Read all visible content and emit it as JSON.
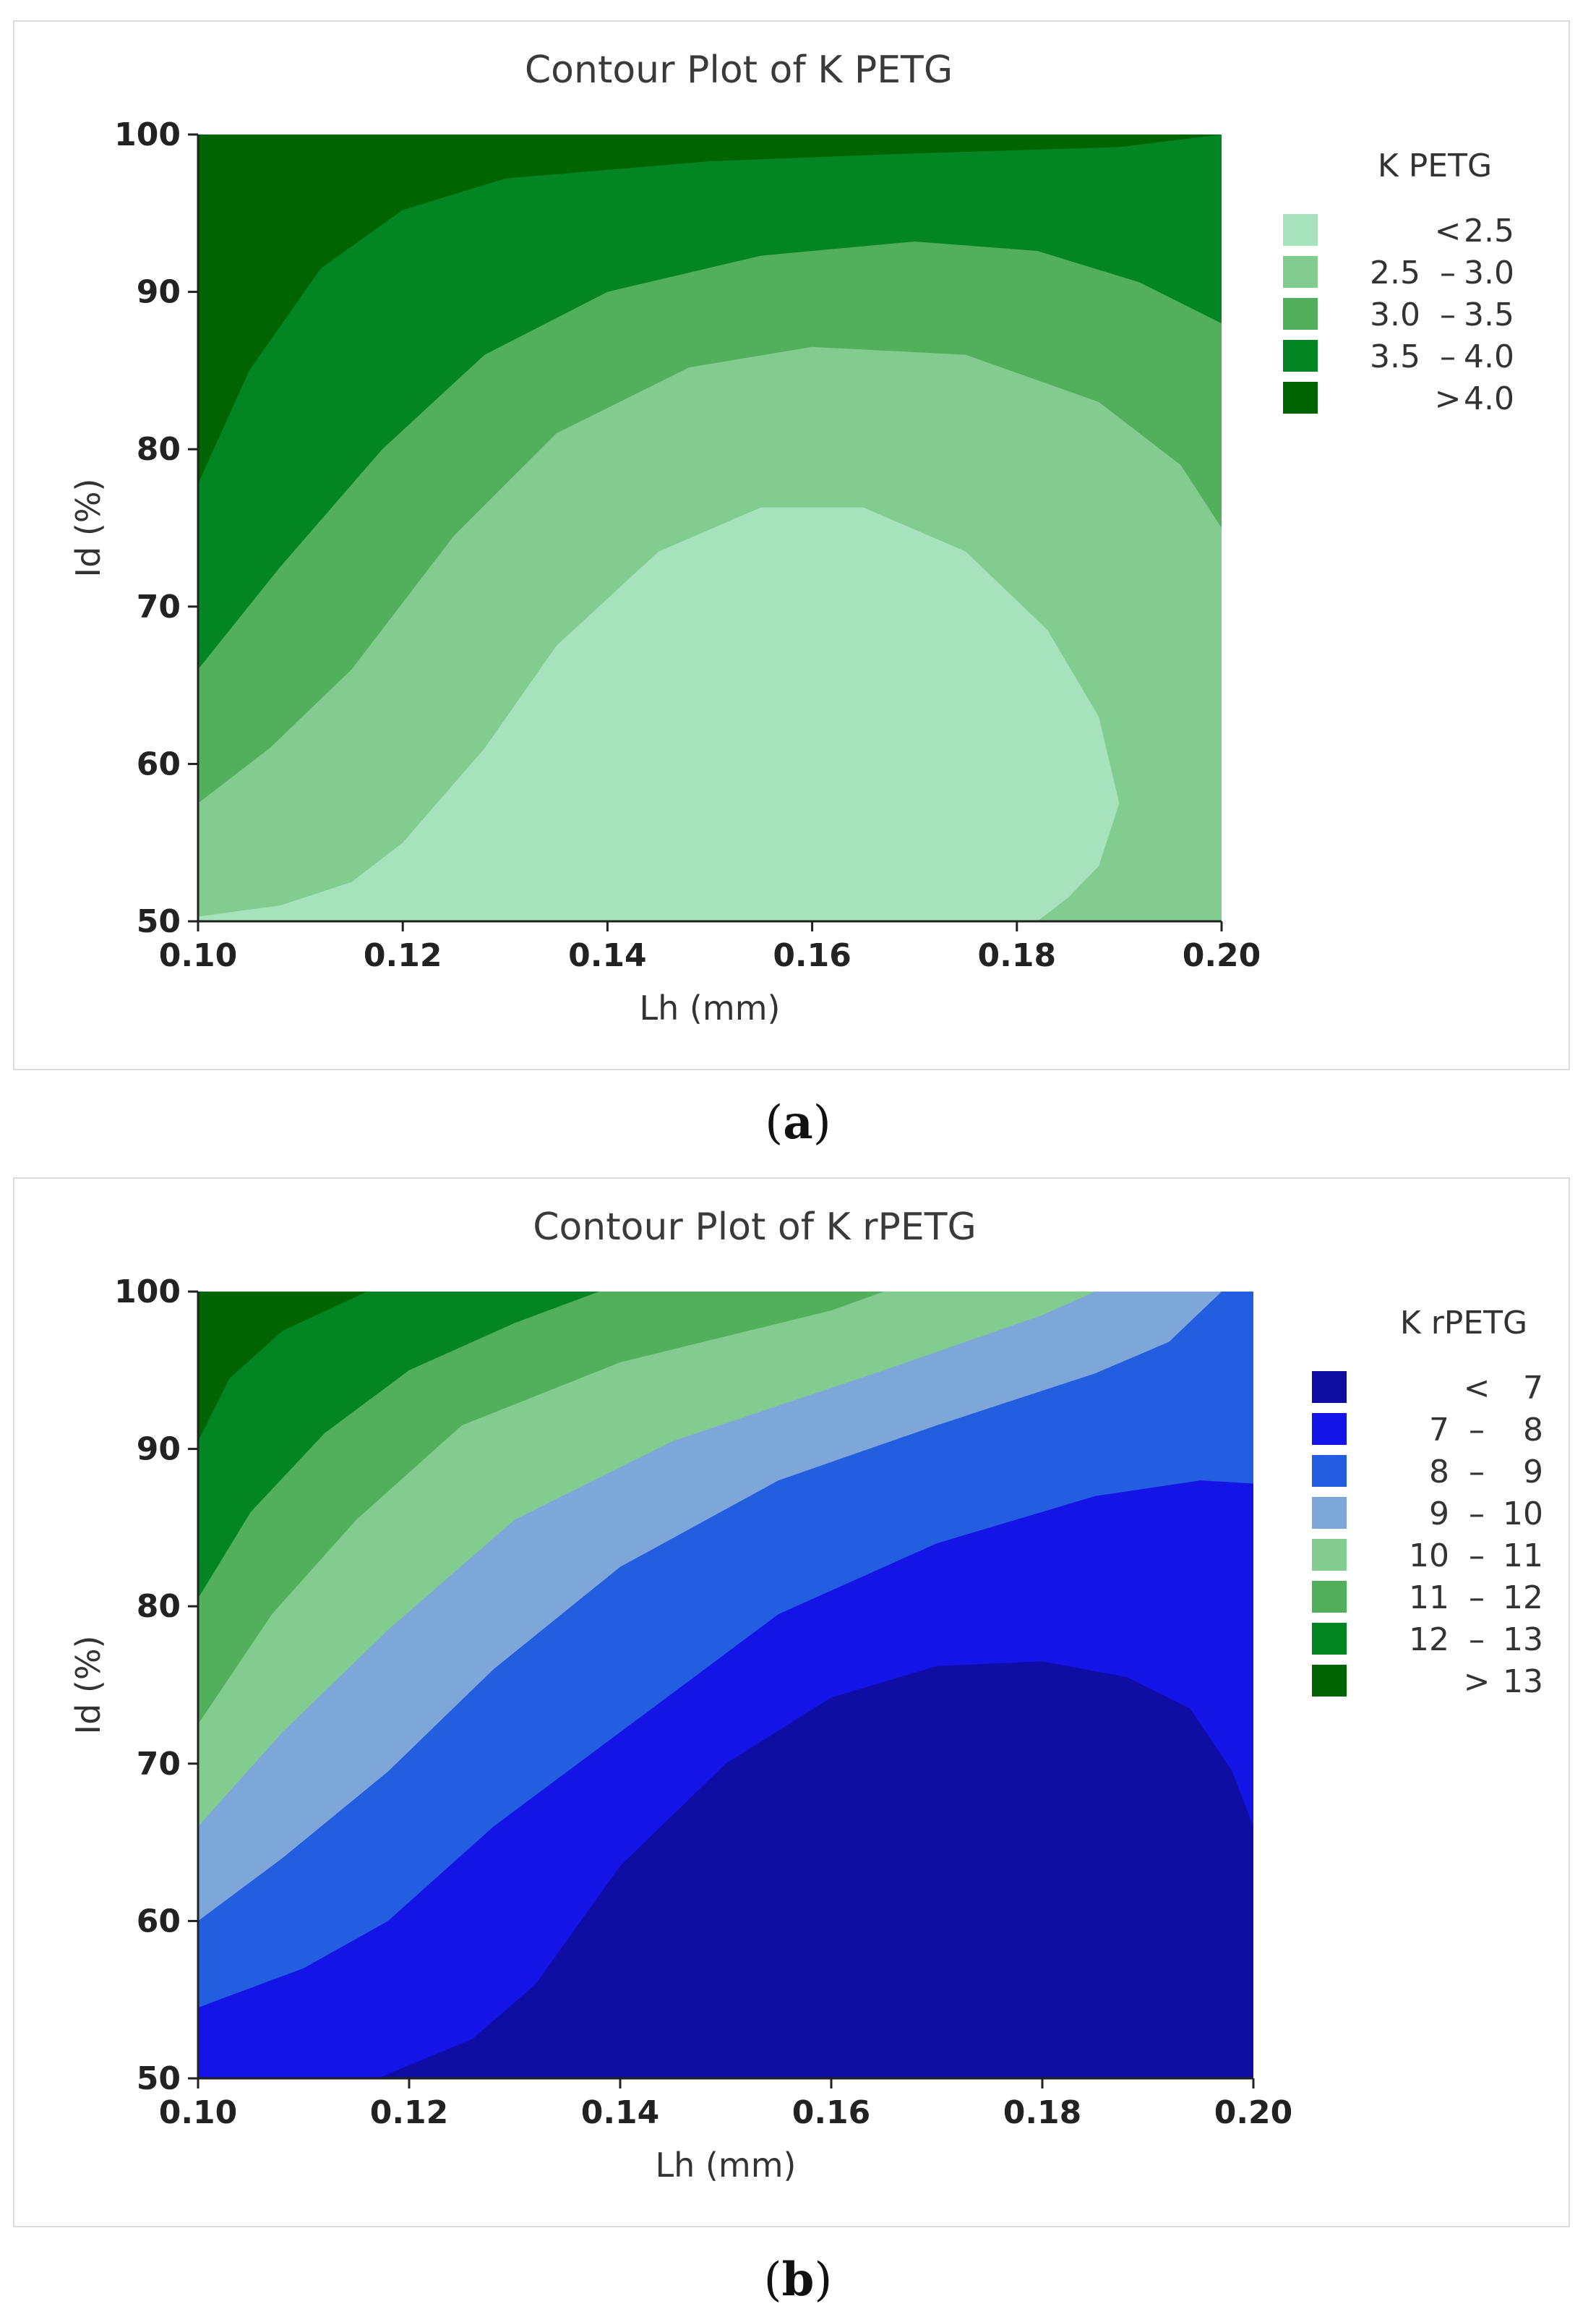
{
  "chart_data": [
    {
      "type": "contour",
      "panel": "a",
      "title": "Contour Plot of K PETG",
      "xlabel": "Lh (mm)",
      "ylabel": "Id (%)",
      "xlim": [
        0.1,
        0.2
      ],
      "ylim": [
        50,
        100
      ],
      "xticks": [
        "0.10",
        "0.12",
        "0.14",
        "0.16",
        "0.18",
        "0.20"
      ],
      "yticks": [
        "50",
        "60",
        "70",
        "80",
        "90",
        "100"
      ],
      "legend_title": "K PETG",
      "legend_position": "right",
      "levels": [
        {
          "lo": "",
          "sym": "<",
          "hi": "2.5",
          "color": "#a6e3bc"
        },
        {
          "lo": "2.5",
          "sym": "–",
          "hi": "3.0",
          "color": "#83cc8f"
        },
        {
          "lo": "3.0",
          "sym": "–",
          "hi": "3.5",
          "color": "#52b05c"
        },
        {
          "lo": "3.5",
          "sym": "–",
          "hi": "4.0",
          "color": "#048524"
        },
        {
          "lo": "",
          "sym": ">",
          "hi": "4.0",
          "color": "#006400"
        }
      ],
      "boundaries": [
        {
          "value": 4.0,
          "points": [
            [
              0.1,
              77.8
            ],
            [
              0.105,
              85
            ],
            [
              0.112,
              91.5
            ],
            [
              0.12,
              95.2
            ],
            [
              0.13,
              97.2
            ],
            [
              0.15,
              98.3
            ],
            [
              0.17,
              98.8
            ],
            [
              0.19,
              99.2
            ],
            [
              0.2,
              100
            ]
          ]
        },
        {
          "value": 3.5,
          "points": [
            [
              0.1,
              66
            ],
            [
              0.108,
              72.5
            ],
            [
              0.118,
              80
            ],
            [
              0.128,
              86
            ],
            [
              0.14,
              90
            ],
            [
              0.155,
              92.3
            ],
            [
              0.17,
              93.2
            ],
            [
              0.182,
              92.6
            ],
            [
              0.192,
              90.6
            ],
            [
              0.2,
              88
            ]
          ]
        },
        {
          "value": 3.0,
          "points": [
            [
              0.1,
              57.5
            ],
            [
              0.107,
              61
            ],
            [
              0.115,
              66
            ],
            [
              0.125,
              74.5
            ],
            [
              0.135,
              81
            ],
            [
              0.148,
              85.2
            ],
            [
              0.16,
              86.5
            ],
            [
              0.175,
              86
            ],
            [
              0.188,
              83
            ],
            [
              0.196,
              79
            ],
            [
              0.2,
              75
            ]
          ]
        },
        {
          "value": 2.5,
          "points": [
            [
              0.1,
              50.3
            ],
            [
              0.108,
              51
            ],
            [
              0.115,
              52.5
            ],
            [
              0.12,
              55
            ],
            [
              0.128,
              61
            ],
            [
              0.135,
              67.5
            ],
            [
              0.145,
              73.5
            ],
            [
              0.155,
              76.3
            ],
            [
              0.165,
              76.3
            ],
            [
              0.175,
              73.5
            ],
            [
              0.183,
              68.5
            ],
            [
              0.188,
              63
            ],
            [
              0.19,
              57.5
            ],
            [
              0.188,
              53.5
            ],
            [
              0.185,
              51.5
            ],
            [
              0.182,
              50
            ]
          ]
        }
      ]
    },
    {
      "type": "contour",
      "panel": "b",
      "title": "Contour Plot of K rPETG",
      "xlabel": "Lh (mm)",
      "ylabel": "Id (%)",
      "xlim": [
        0.1,
        0.2
      ],
      "ylim": [
        50,
        100
      ],
      "xticks": [
        "0.10",
        "0.12",
        "0.14",
        "0.16",
        "0.18",
        "0.20"
      ],
      "yticks": [
        "50",
        "60",
        "70",
        "80",
        "90",
        "100"
      ],
      "legend_title": "K rPETG",
      "legend_position": "right",
      "levels": [
        {
          "lo": "",
          "sym": "<",
          "hi": "7",
          "color": "#0f0ea3"
        },
        {
          "lo": "7",
          "sym": "–",
          "hi": "8",
          "color": "#1414e6"
        },
        {
          "lo": "8",
          "sym": "–",
          "hi": "9",
          "color": "#235de0"
        },
        {
          "lo": "9",
          "sym": "–",
          "hi": "10",
          "color": "#7ea7d9"
        },
        {
          "lo": "10",
          "sym": "–",
          "hi": "11",
          "color": "#83cc8f"
        },
        {
          "lo": "11",
          "sym": "–",
          "hi": "12",
          "color": "#52b05c"
        },
        {
          "lo": "12",
          "sym": "–",
          "hi": "13",
          "color": "#048524"
        },
        {
          "lo": "",
          "sym": ">",
          "hi": "13",
          "color": "#006400"
        }
      ],
      "boundaries": [
        {
          "value": 13,
          "points": [
            [
              0.1,
              90.5
            ],
            [
              0.103,
              94.5
            ],
            [
              0.108,
              97.5
            ],
            [
              0.116,
              100
            ]
          ]
        },
        {
          "value": 12,
          "points": [
            [
              0.1,
              80.5
            ],
            [
              0.105,
              86
            ],
            [
              0.112,
              91
            ],
            [
              0.12,
              95
            ],
            [
              0.13,
              98
            ],
            [
              0.138,
              100
            ]
          ]
        },
        {
          "value": 11,
          "points": [
            [
              0.1,
              72.5
            ],
            [
              0.107,
              79.5
            ],
            [
              0.115,
              85.5
            ],
            [
              0.125,
              91.5
            ],
            [
              0.14,
              95.5
            ],
            [
              0.16,
              98.8
            ],
            [
              0.165,
              100
            ]
          ]
        },
        {
          "value": 10,
          "points": [
            [
              0.1,
              66
            ],
            [
              0.108,
              72
            ],
            [
              0.118,
              78.5
            ],
            [
              0.13,
              85.5
            ],
            [
              0.145,
              90.5
            ],
            [
              0.165,
              95
            ],
            [
              0.18,
              98.5
            ],
            [
              0.185,
              100
            ]
          ]
        },
        {
          "value": 9,
          "points": [
            [
              0.1,
              60
            ],
            [
              0.108,
              64
            ],
            [
              0.118,
              69.5
            ],
            [
              0.128,
              76
            ],
            [
              0.14,
              82.5
            ],
            [
              0.155,
              88
            ],
            [
              0.17,
              91.5
            ],
            [
              0.185,
              94.8
            ],
            [
              0.192,
              96.8
            ],
            [
              0.197,
              100
            ]
          ]
        },
        {
          "value": 8,
          "points": [
            [
              0.1,
              54.5
            ],
            [
              0.11,
              57
            ],
            [
              0.118,
              60
            ],
            [
              0.128,
              66
            ],
            [
              0.14,
              72
            ],
            [
              0.155,
              79.5
            ],
            [
              0.17,
              84
            ],
            [
              0.185,
              87
            ],
            [
              0.195,
              88
            ],
            [
              0.2,
              87.8
            ]
          ]
        },
        {
          "value": 7,
          "points": [
            [
              0.117,
              50
            ],
            [
              0.126,
              52.5
            ],
            [
              0.132,
              56
            ],
            [
              0.14,
              63.5
            ],
            [
              0.15,
              70
            ],
            [
              0.16,
              74.2
            ],
            [
              0.17,
              76.2
            ],
            [
              0.18,
              76.5
            ],
            [
              0.188,
              75.5
            ],
            [
              0.194,
              73.5
            ],
            [
              0.198,
              69.5
            ],
            [
              0.2,
              66
            ]
          ]
        }
      ]
    }
  ],
  "captions": {
    "a": "a",
    "b": "b"
  }
}
